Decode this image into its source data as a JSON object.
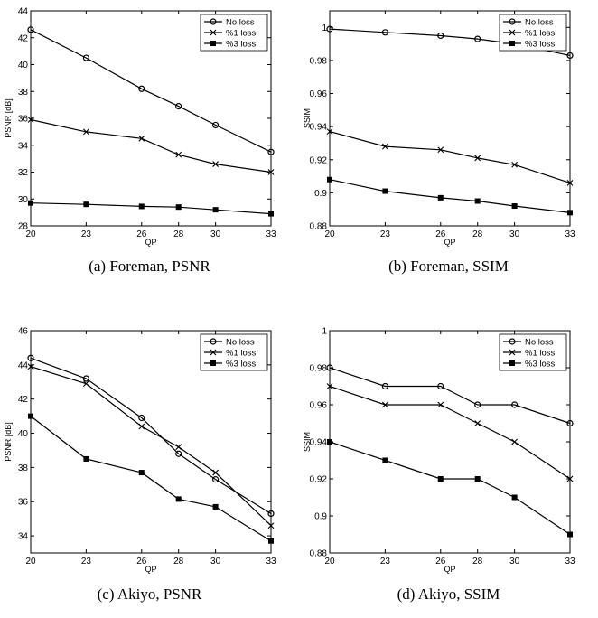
{
  "chart_data": [
    {
      "type": "line",
      "caption": "(a) Foreman, PSNR",
      "xlabel": "QP",
      "ylabel": "PSNR [dB]",
      "x": [
        20,
        23,
        26,
        28,
        30,
        33
      ],
      "xticks": [
        "20",
        "23",
        "26",
        "28",
        "30",
        "33"
      ],
      "ylim": [
        28,
        44
      ],
      "yticks": [
        "28",
        "30",
        "32",
        "34",
        "36",
        "38",
        "40",
        "42",
        "44"
      ],
      "grid": false,
      "legend_position": "top-right",
      "series": [
        {
          "name": "No loss",
          "marker": "circle",
          "values": [
            42.6,
            40.5,
            38.2,
            36.9,
            35.5,
            33.5
          ]
        },
        {
          "name": "%1 loss",
          "marker": "x",
          "values": [
            35.9,
            35.0,
            34.5,
            33.3,
            32.6,
            32.0
          ]
        },
        {
          "name": "%3 loss",
          "marker": "square",
          "values": [
            29.7,
            29.6,
            29.45,
            29.4,
            29.2,
            28.9
          ]
        }
      ]
    },
    {
      "type": "line",
      "caption": "(b) Foreman, SSIM",
      "xlabel": "QP",
      "ylabel": "SSIM",
      "x": [
        20,
        23,
        26,
        28,
        30,
        33
      ],
      "xticks": [
        "20",
        "23",
        "26",
        "28",
        "30",
        "33"
      ],
      "ylim": [
        0.88,
        1.01
      ],
      "yticks": [
        "0.88",
        "0.9",
        "0.92",
        "0.94",
        "0.96",
        "0.98",
        "1"
      ],
      "grid": false,
      "legend_position": "top-right",
      "series": [
        {
          "name": "No loss",
          "marker": "circle",
          "values": [
            0.999,
            0.997,
            0.995,
            0.993,
            0.99,
            0.983
          ]
        },
        {
          "name": "%1 loss",
          "marker": "x",
          "values": [
            0.937,
            0.928,
            0.926,
            0.921,
            0.917,
            0.906
          ]
        },
        {
          "name": "%3 loss",
          "marker": "square",
          "values": [
            0.908,
            0.901,
            0.897,
            0.895,
            0.892,
            0.888
          ]
        }
      ]
    },
    {
      "type": "line",
      "caption": "(c) Akiyo, PSNR",
      "xlabel": "QP",
      "ylabel": "PSNR [dB]",
      "x": [
        20,
        23,
        26,
        28,
        30,
        33
      ],
      "xticks": [
        "20",
        "23",
        "26",
        "28",
        "30",
        "33"
      ],
      "ylim": [
        33,
        46
      ],
      "yticks": [
        "34",
        "36",
        "38",
        "40",
        "42",
        "44",
        "46"
      ],
      "grid": false,
      "legend_position": "top-right",
      "series": [
        {
          "name": "No loss",
          "marker": "circle",
          "values": [
            44.4,
            43.2,
            40.9,
            38.8,
            37.3,
            35.3
          ]
        },
        {
          "name": "%1 loss",
          "marker": "x",
          "values": [
            43.9,
            42.9,
            40.4,
            39.2,
            37.7,
            34.6
          ]
        },
        {
          "name": "%3 loss",
          "marker": "square",
          "values": [
            41.0,
            38.5,
            37.7,
            36.15,
            35.7,
            33.7
          ]
        }
      ]
    },
    {
      "type": "line",
      "caption": "(d) Akiyo, SSIM",
      "xlabel": "QP",
      "ylabel": "SSIM",
      "x": [
        20,
        23,
        26,
        28,
        30,
        33
      ],
      "xticks": [
        "20",
        "23",
        "26",
        "28",
        "30",
        "33"
      ],
      "ylim": [
        0.88,
        1.0
      ],
      "yticks": [
        "0.88",
        "0.9",
        "0.92",
        "0.94",
        "0.96",
        "0.98",
        "1"
      ],
      "grid": false,
      "legend_position": "top-right",
      "series": [
        {
          "name": "No loss",
          "marker": "circle",
          "values": [
            0.98,
            0.97,
            0.97,
            0.96,
            0.96,
            0.95
          ]
        },
        {
          "name": "%1 loss",
          "marker": "x",
          "values": [
            0.97,
            0.96,
            0.96,
            0.95,
            0.94,
            0.92
          ]
        },
        {
          "name": "%3 loss",
          "marker": "square",
          "values": [
            0.94,
            0.93,
            0.92,
            0.92,
            0.91,
            0.89
          ]
        }
      ]
    }
  ]
}
